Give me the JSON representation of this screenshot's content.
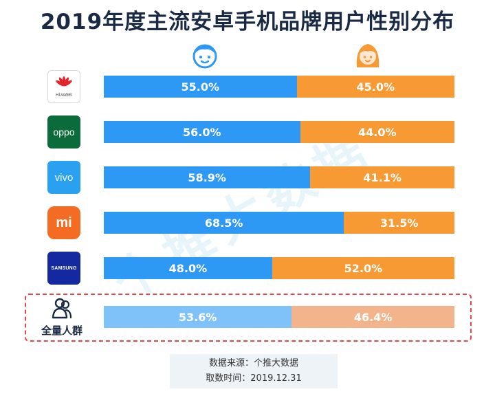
{
  "title": "2019年度主流安卓手机品牌用户性别分布",
  "watermark": "个推大数据",
  "colors": {
    "male": "#2e98f5",
    "female": "#f89a33",
    "male_total": "#7fc2fa",
    "female_total": "#f3b48c",
    "highlight_border": "#e0484a"
  },
  "legend_icons": {
    "male": "boy-face-icon",
    "female": "girl-face-icon"
  },
  "brands": [
    {
      "name": "HUAWEI",
      "logo_text": "HUAWEI",
      "icon": "huawei-logo-icon"
    },
    {
      "name": "OPPO",
      "logo_text": "oppo",
      "icon": "oppo-logo-icon"
    },
    {
      "name": "vivo",
      "logo_text": "vivo",
      "icon": "vivo-logo-icon"
    },
    {
      "name": "Xiaomi",
      "logo_text": "mi",
      "icon": "xiaomi-logo-icon"
    },
    {
      "name": "SAMSUNG",
      "logo_text": "SAMSUNG",
      "icon": "samsung-logo-icon"
    }
  ],
  "total_label": "全量人群",
  "source": {
    "line1": "数据来源：个推大数据",
    "line2": "取数时间：2019.12.31"
  },
  "chart_data": {
    "type": "bar",
    "stacked": true,
    "orientation": "horizontal",
    "unit": "%",
    "categories": [
      "HUAWEI",
      "OPPO",
      "vivo",
      "Xiaomi",
      "SAMSUNG",
      "全量人群"
    ],
    "series": [
      {
        "values": [
          55.0,
          56.0,
          58.9,
          68.5,
          48.0,
          53.6
        ],
        "labels": [
          "55.0%",
          "56.0%",
          "58.9%",
          "68.5%",
          "48.0%",
          "53.6%"
        ]
      },
      {
        "values": [
          45.0,
          44.0,
          41.1,
          31.5,
          52.0,
          46.4
        ],
        "labels": [
          "45.0%",
          "44.0%",
          "41.1%",
          "31.5%",
          "52.0%",
          "46.4%"
        ]
      }
    ],
    "xlim": [
      0,
      100
    ],
    "grid": false
  }
}
